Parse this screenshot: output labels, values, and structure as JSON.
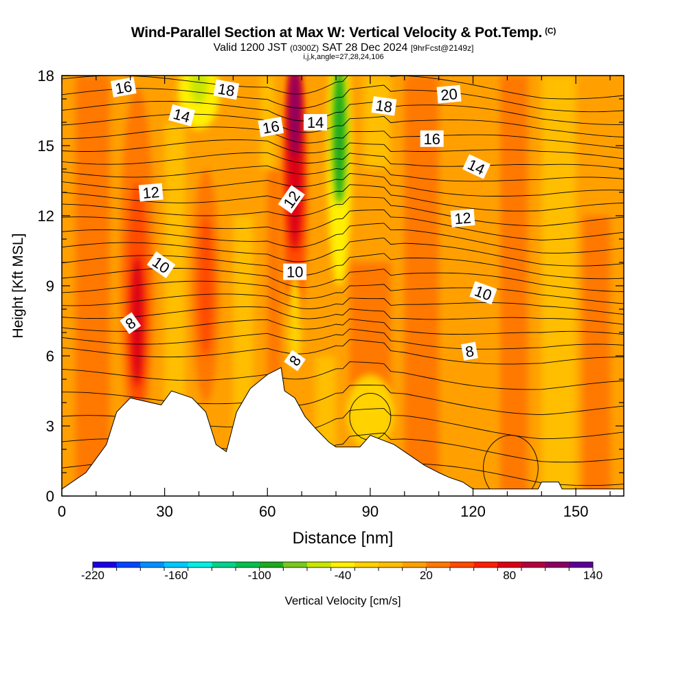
{
  "header": {
    "title": "Wind-Parallel Section at Max W: Vertical Velocity & Pot.Temp.",
    "copyright": "(C)",
    "valid_prefix": "Valid 1200 JST",
    "valid_utc": "(0300Z)",
    "valid_date": "SAT 28 Dec 2024",
    "forecast": "[9hrFcst@2149z]",
    "indices": "i,j,k,angle=27,28,24,106"
  },
  "chart_data": {
    "type": "heatmap",
    "title": "Wind-Parallel Section at Max W: Vertical Velocity & Pot.Temp.",
    "xlabel": "Distance [nm]",
    "ylabel": "Height [Kft MSL]",
    "xlim": [
      0,
      164
    ],
    "ylim": [
      0,
      18
    ],
    "x_ticks": [
      0,
      30,
      60,
      90,
      120,
      150
    ],
    "y_ticks": [
      0,
      3,
      6,
      9,
      12,
      15,
      18
    ],
    "colorbar": {
      "label": "Vertical Velocity [cm/s]",
      "ticks": [
        -220,
        -160,
        -100,
        -40,
        20,
        80,
        140
      ],
      "range": [
        -220,
        140
      ],
      "colors": [
        "#1a00e6",
        "#0046ff",
        "#0090ff",
        "#00c8ff",
        "#00f0e6",
        "#00d28c",
        "#00c050",
        "#1eaa1e",
        "#78c81e",
        "#c8e600",
        "#fff000",
        "#ffd200",
        "#ffbe00",
        "#ffa000",
        "#ff7800",
        "#ff4b00",
        "#ff1e00",
        "#dc0014",
        "#b4003c",
        "#8c0064",
        "#5a0096"
      ]
    },
    "terrain_kft": [
      [
        0,
        0.3
      ],
      [
        3,
        0.6
      ],
      [
        7,
        1.0
      ],
      [
        10,
        1.6
      ],
      [
        13,
        2.2
      ],
      [
        16,
        3.6
      ],
      [
        20,
        4.2
      ],
      [
        29,
        3.9
      ],
      [
        32,
        4.5
      ],
      [
        38,
        4.2
      ],
      [
        42,
        3.6
      ],
      [
        45,
        2.2
      ],
      [
        48,
        1.9
      ],
      [
        51,
        3.6
      ],
      [
        55,
        4.6
      ],
      [
        60,
        5.2
      ],
      [
        64,
        5.5
      ],
      [
        65,
        4.5
      ],
      [
        68,
        4.2
      ],
      [
        71,
        3.4
      ],
      [
        74,
        2.9
      ],
      [
        78,
        2.3
      ],
      [
        80,
        2.1
      ],
      [
        87,
        2.1
      ],
      [
        90,
        2.6
      ],
      [
        97,
        2.2
      ],
      [
        100,
        1.9
      ],
      [
        103,
        1.6
      ],
      [
        106,
        1.3
      ],
      [
        110,
        1.0
      ],
      [
        113,
        0.8
      ],
      [
        117,
        0.6
      ],
      [
        120,
        0.3
      ],
      [
        139,
        0.3
      ],
      [
        140,
        0.6
      ],
      [
        145,
        0.6
      ],
      [
        146,
        0.3
      ],
      [
        164,
        0.3
      ]
    ],
    "w_features_cm_s": [
      {
        "label": "updraft",
        "x": 22,
        "y": 8,
        "w": 80
      },
      {
        "label": "updraft",
        "x": 42,
        "y": 9,
        "w": 50
      },
      {
        "label": "updraft",
        "x": 68,
        "y": 16,
        "w": 120
      },
      {
        "label": "downdraft",
        "x": 81,
        "y": 15.5,
        "w": -90
      },
      {
        "label": "downdraft",
        "x": 40,
        "y": 17,
        "w": -60
      },
      {
        "label": "weak downdraft",
        "x": 90,
        "y": 3.5,
        "w": -30
      }
    ],
    "contour_labels": [
      {
        "text": "16",
        "x": 18,
        "y": 17.5,
        "angle": -10
      },
      {
        "text": "18",
        "x": 48,
        "y": 17.4,
        "angle": 10
      },
      {
        "text": "14",
        "x": 35,
        "y": 16.3,
        "angle": 15
      },
      {
        "text": "16",
        "x": 61,
        "y": 15.8,
        "angle": -10
      },
      {
        "text": "14",
        "x": 74,
        "y": 16.0,
        "angle": 0
      },
      {
        "text": "18",
        "x": 94,
        "y": 16.7,
        "angle": 8
      },
      {
        "text": "20",
        "x": 113,
        "y": 17.2,
        "angle": -5
      },
      {
        "text": "16",
        "x": 108,
        "y": 15.3,
        "angle": 0
      },
      {
        "text": "14",
        "x": 121,
        "y": 14.1,
        "angle": 25
      },
      {
        "text": "12",
        "x": 26,
        "y": 13.0,
        "angle": -5
      },
      {
        "text": "12",
        "x": 67,
        "y": 12.7,
        "angle": -55
      },
      {
        "text": "12",
        "x": 117,
        "y": 11.9,
        "angle": -5
      },
      {
        "text": "10",
        "x": 29,
        "y": 9.9,
        "angle": 35
      },
      {
        "text": "10",
        "x": 68,
        "y": 9.6,
        "angle": 0
      },
      {
        "text": "10",
        "x": 123,
        "y": 8.7,
        "angle": 20
      },
      {
        "text": "8",
        "x": 20,
        "y": 7.4,
        "angle": -35
      },
      {
        "text": "8",
        "x": 68,
        "y": 5.8,
        "angle": -55
      },
      {
        "text": "8",
        "x": 119,
        "y": 6.2,
        "angle": -10
      }
    ]
  }
}
